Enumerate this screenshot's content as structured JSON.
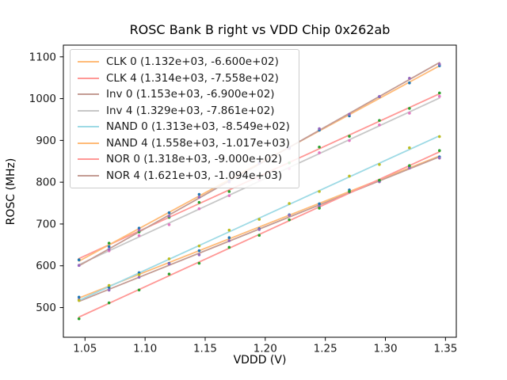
{
  "chart_data": {
    "type": "scatter",
    "title": "ROSC Bank B right vs VDD Chip 0x262ab",
    "xlabel": "VDDD (V)",
    "ylabel": "ROSC (MHz)",
    "xlim": [
      1.032,
      1.359
    ],
    "ylim": [
      429,
      1128
    ],
    "xticks": [
      1.05,
      1.1,
      1.15,
      1.2,
      1.25,
      1.3,
      1.35
    ],
    "xtick_labels": [
      "1.05",
      "1.10",
      "1.15",
      "1.20",
      "1.25",
      "1.30",
      "1.35"
    ],
    "yticks": [
      500,
      600,
      700,
      800,
      900,
      1000,
      1100
    ],
    "ytick_labels": [
      "500",
      "600",
      "700",
      "800",
      "900",
      "1000",
      "1100"
    ],
    "grid": false,
    "legend_position": "upper left",
    "axis_color": "#000000",
    "x": [
      1.045,
      1.07,
      1.095,
      1.12,
      1.145,
      1.17,
      1.195,
      1.22,
      1.245,
      1.27,
      1.295,
      1.32,
      1.345
    ],
    "series": [
      {
        "name": "CLK 0",
        "legend_label": "CLK 0 (1.132e+03, -6.600e+02)",
        "fit_slope": 1132.0,
        "fit_intercept": -660.0,
        "line_color": "#ffbb78",
        "dot_color": "#1f77b4",
        "y": [
          525.0,
          548.2,
          583.5,
          605.8,
          636.1,
          667.4,
          688.7,
          722.0,
          748.3,
          781.6,
          802.9,
          836.2,
          860.5
        ]
      },
      {
        "name": "CLK 4",
        "legend_label": "CLK 4 (1.314e+03, -7.558e+02)",
        "fit_slope": 1314.0,
        "fit_intercept": -755.8,
        "line_color": "#ff9896",
        "dot_color": "#2ca02c",
        "y": [
          614.3,
          654.2,
          681.0,
          715.9,
          751.7,
          777.6,
          815.4,
          846.3,
          884.1,
          910.0,
          947.8,
          976.7,
          1013.5
        ]
      },
      {
        "name": "Inv 0",
        "legend_label": "Inv 0 (1.153e+03, -6.900e+02)",
        "fit_slope": 1153.0,
        "fit_intercept": -690.0,
        "line_color": "#c49c94",
        "dot_color": "#9467bd",
        "y": [
          518.9,
          541.7,
          572.5,
          604.4,
          626.2,
          660.0,
          686.8,
          720.7,
          742.5,
          776.3,
          801.1,
          834.0,
          857.8
        ]
      },
      {
        "name": "Inv 4",
        "legend_label": "Inv 4 (1.329e+03, -7.861e+02)",
        "fit_slope": 1329.0,
        "fit_intercept": -786.1,
        "line_color": "#c7c7c7",
        "dot_color": "#e377c2",
        "y": [
          600.7,
          635.9,
          672.2,
          698.4,
          736.6,
          767.8,
          806.1,
          832.3,
          870.5,
          899.7,
          937.0,
          965.2,
          1005.4
        ]
      },
      {
        "name": "NAND 0",
        "legend_label": "NAND 0 (1.313e+03, -8.549e+02)",
        "fit_slope": 1313.0,
        "fit_intercept": -854.9,
        "line_color": "#9edae5",
        "dot_color": "#bcbd22",
        "y": [
          517.2,
          553.0,
          578.8,
          616.7,
          647.5,
          685.3,
          711.1,
          749.0,
          777.8,
          814.6,
          842.4,
          882.3,
          909.1
        ]
      },
      {
        "name": "NAND 4",
        "legend_label": "NAND 4 (1.558e+03, -1.017e+03)",
        "fit_slope": 1558.0,
        "fit_intercept": -1017.0,
        "line_color": "#ffbb78",
        "dot_color": "#1f77b4",
        "y": [
          614.1,
          646.1,
          690.0,
          727.0,
          770.9,
          802.9,
          846.8,
          881.8,
          924.7,
          958.7,
          1004.6,
          1037.6,
          1078.5
        ]
      },
      {
        "name": "NOR 0",
        "legend_label": "NOR 0 (1.318e+03, -9.000e+02)",
        "fit_slope": 1318.0,
        "fit_intercept": -900.0,
        "line_color": "#ff9896",
        "dot_color": "#2ca02c",
        "y": [
          473.3,
          511.3,
          542.2,
          580.2,
          606.1,
          644.1,
          673.0,
          710.0,
          737.9,
          777.9,
          804.8,
          839.8,
          875.7
        ]
      },
      {
        "name": "NOR 4",
        "legend_label": "NOR 4 (1.621e+03, -1.094e+03)",
        "fit_slope": 1621.0,
        "fit_intercept": -1094.0,
        "line_color": "#c49c94",
        "dot_color": "#9467bd",
        "y": [
          601.0,
          639.5,
          685.0,
          718.5,
          764.1,
          800.6,
          845.1,
          880.6,
          928.1,
          962.7,
          1005.2,
          1048.7,
          1082.2
        ]
      }
    ]
  }
}
